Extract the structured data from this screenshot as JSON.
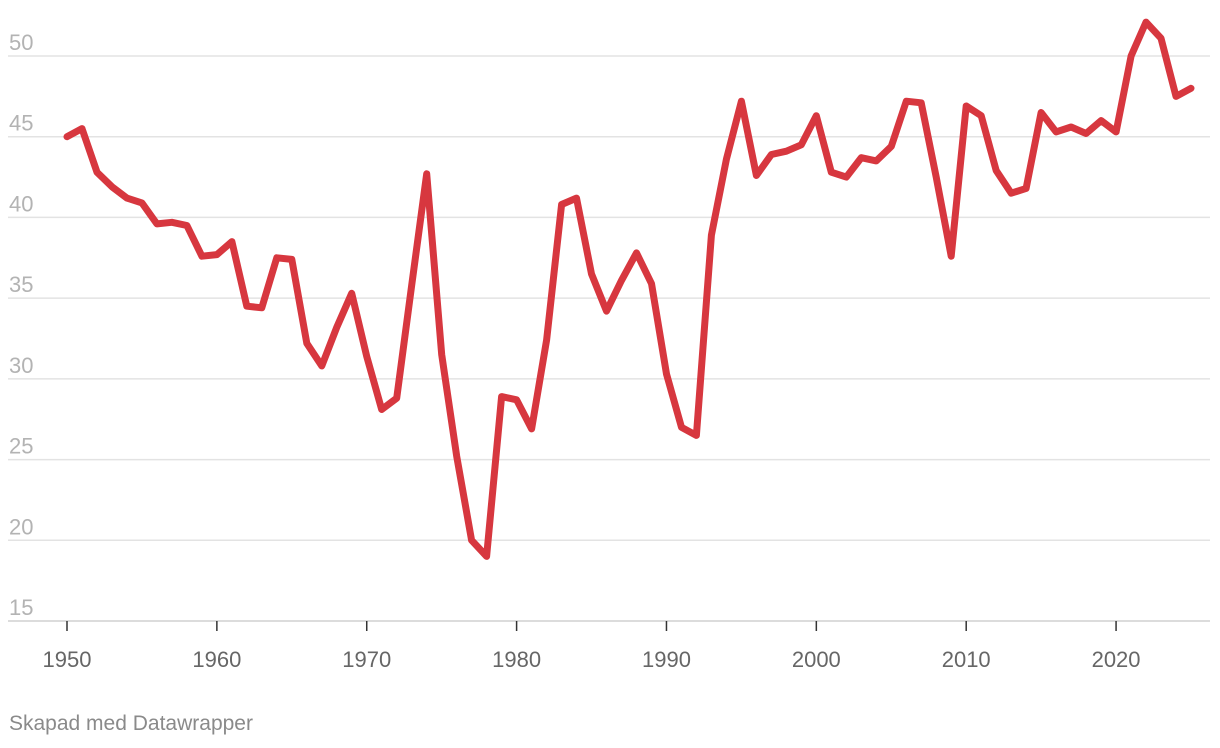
{
  "chart_data": {
    "type": "line",
    "title": "",
    "xlabel": "",
    "ylabel": "",
    "xlim": [
      1950,
      2025
    ],
    "ylim": [
      15,
      52
    ],
    "yticks": [
      15,
      20,
      25,
      30,
      35,
      40,
      45,
      50
    ],
    "xticks": [
      1950,
      1960,
      1970,
      1980,
      1990,
      2000,
      2010,
      2020
    ],
    "grid": true,
    "legend": "none",
    "series": [
      {
        "color": "#d7373f",
        "x": [
          1950,
          1951,
          1952,
          1953,
          1954,
          1955,
          1956,
          1957,
          1958,
          1959,
          1960,
          1961,
          1962,
          1963,
          1964,
          1965,
          1966,
          1967,
          1968,
          1969,
          1970,
          1971,
          1972,
          1973,
          1974,
          1975,
          1976,
          1977,
          1978,
          1979,
          1980,
          1981,
          1982,
          1983,
          1984,
          1985,
          1986,
          1987,
          1988,
          1989,
          1990,
          1991,
          1992,
          1993,
          1994,
          1995,
          1996,
          1997,
          1998,
          1999,
          2000,
          2001,
          2002,
          2003,
          2004,
          2005,
          2006,
          2007,
          2008,
          2009,
          2010,
          2011,
          2012,
          2013,
          2014,
          2015,
          2016,
          2017,
          2018,
          2019,
          2020,
          2021,
          2022,
          2023,
          2024,
          2025
        ],
        "values": [
          45.0,
          45.5,
          42.8,
          41.9,
          41.2,
          40.9,
          39.6,
          39.7,
          39.5,
          37.6,
          37.7,
          38.5,
          34.5,
          34.4,
          37.5,
          37.4,
          32.2,
          30.8,
          33.2,
          35.3,
          31.4,
          28.1,
          28.8,
          35.8,
          42.7,
          31.5,
          25.2,
          20.0,
          19.0,
          28.9,
          28.7,
          26.9,
          32.4,
          40.8,
          41.2,
          36.5,
          34.2,
          36.1,
          37.8,
          35.9,
          30.3,
          27.0,
          26.5,
          38.9,
          43.6,
          47.2,
          42.6,
          43.9,
          44.1,
          44.5,
          46.3,
          42.8,
          42.5,
          43.7,
          43.5,
          44.4,
          47.2,
          47.1,
          42.5,
          37.6,
          46.9,
          46.3,
          42.9,
          41.5,
          41.8,
          46.5,
          45.3,
          45.6,
          45.2,
          46.0,
          45.3,
          50.0,
          52.1,
          51.1,
          47.5,
          48.0
        ]
      }
    ]
  },
  "footer": {
    "credit": "Skapad med Datawrapper"
  }
}
